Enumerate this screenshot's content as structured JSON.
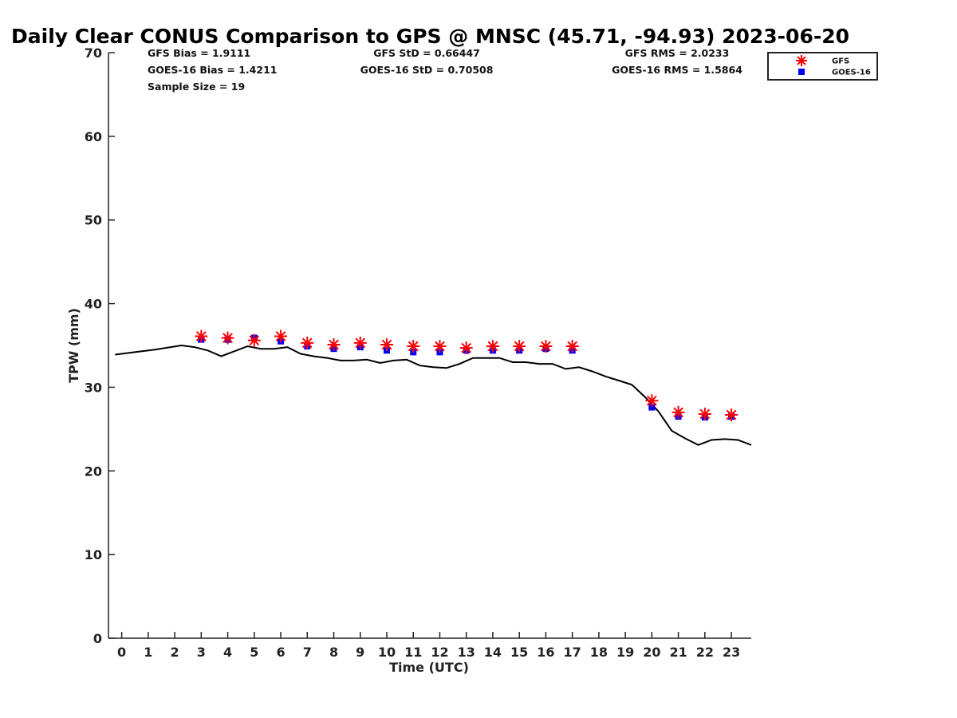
{
  "chart_data": {
    "type": "scatter",
    "title": "Daily Clear CONUS Comparison to GPS @ MNSC (45.71, -94.93) 2023-06-20",
    "xlabel": "Time (UTC)",
    "ylabel": "TPW (mm)",
    "xlim": [
      -0.5,
      23.75
    ],
    "ylim": [
      0,
      70
    ],
    "x_ticks": [
      0,
      1,
      2,
      3,
      4,
      5,
      6,
      7,
      8,
      9,
      10,
      11,
      12,
      13,
      14,
      15,
      16,
      17,
      18,
      19,
      20,
      21,
      22,
      23
    ],
    "y_ticks": [
      0,
      10,
      20,
      30,
      40,
      50,
      60,
      70
    ],
    "grid": false,
    "legend_position": "top-right",
    "stats": [
      {
        "text": "GFS Bias = 1.9111",
        "col": 0,
        "row": 0
      },
      {
        "text": "GOES-16 Bias = 1.4211",
        "col": 0,
        "row": 1
      },
      {
        "text": "Sample Size = 19",
        "col": 0,
        "row": 2
      },
      {
        "text": "GFS StD = 0.66447",
        "col": 1,
        "row": 0
      },
      {
        "text": "GOES-16 StD = 0.70508",
        "col": 1,
        "row": 1
      },
      {
        "text": "GFS RMS = 2.0233",
        "col": 2,
        "row": 0
      },
      {
        "text": "GOES-16 RMS = 1.5864",
        "col": 2,
        "row": 1
      }
    ],
    "series": [
      {
        "name": "GFS",
        "marker": "asterisk",
        "color": "#ff0000",
        "x": [
          3,
          4,
          5,
          6,
          7,
          8,
          9,
          10,
          11,
          12,
          13,
          14,
          15,
          16,
          17,
          20,
          21,
          22,
          23
        ],
        "y": [
          36.1,
          35.9,
          35.6,
          36.1,
          35.3,
          35.1,
          35.3,
          35.1,
          34.9,
          34.9,
          34.7,
          34.9,
          34.9,
          34.9,
          34.9,
          28.4,
          27.0,
          26.8,
          26.7
        ]
      },
      {
        "name": "GOES-16",
        "marker": "square",
        "color": "#0000ff",
        "x": [
          3,
          4,
          5,
          6,
          7,
          8,
          9,
          10,
          11,
          12,
          13,
          14,
          15,
          16,
          17,
          20,
          21,
          22,
          23
        ],
        "y": [
          35.7,
          35.7,
          35.9,
          35.5,
          34.9,
          34.6,
          34.8,
          34.4,
          34.2,
          34.2,
          34.4,
          34.4,
          34.4,
          34.6,
          34.4,
          27.6,
          26.5,
          26.4,
          26.5
        ]
      },
      {
        "name": "GPS",
        "marker": "line",
        "color": "#000000",
        "x": [
          -0.25,
          0.5,
          1.25,
          2.25,
          2.75,
          3.25,
          3.75,
          4.25,
          4.75,
          5.25,
          5.75,
          6.25,
          6.75,
          7.25,
          7.75,
          8.25,
          8.75,
          9.25,
          9.75,
          10.25,
          10.75,
          11.25,
          11.75,
          12.25,
          12.75,
          13.25,
          13.75,
          14.25,
          14.75,
          15.25,
          15.75,
          16.25,
          16.75,
          17.25,
          17.75,
          18.25,
          18.75,
          19.25,
          19.75,
          20.25,
          20.75,
          21.25,
          21.75,
          22.25,
          22.75,
          23.25,
          23.75
        ],
        "y": [
          33.9,
          34.2,
          34.5,
          35.0,
          34.8,
          34.4,
          33.7,
          34.3,
          34.9,
          34.6,
          34.6,
          34.8,
          34.0,
          33.7,
          33.5,
          33.2,
          33.2,
          33.3,
          32.9,
          33.2,
          33.3,
          32.6,
          32.4,
          32.3,
          32.8,
          33.5,
          33.5,
          33.5,
          33.0,
          33.0,
          32.8,
          32.8,
          32.2,
          32.4,
          31.9,
          31.3,
          30.8,
          30.3,
          28.8,
          27.1,
          24.8,
          23.9,
          23.1,
          23.7,
          23.8,
          23.7,
          23.1
        ]
      }
    ]
  }
}
